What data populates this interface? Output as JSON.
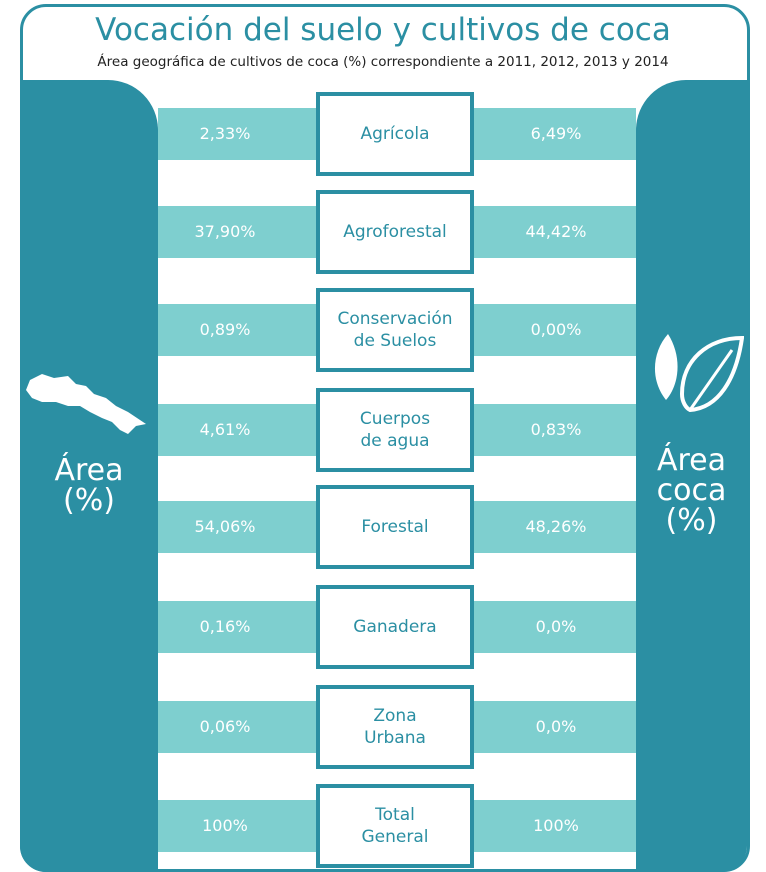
{
  "header": {
    "title": "Vocación del suelo y cultivos de coca",
    "subtitle": "Área geográfica de cultivos de coca (%) correspondiente a 2011, 2012, 2013 y 2014"
  },
  "left_panel": {
    "label": [
      "Área",
      "(%)"
    ]
  },
  "right_panel": {
    "label": [
      "Área",
      "coca",
      "(%)"
    ]
  },
  "rows": [
    {
      "label": [
        "Agrícola"
      ],
      "area": "2,33%",
      "coca": "6,49%"
    },
    {
      "label": [
        "Agroforestal"
      ],
      "area": "37,90%",
      "coca": "44,42%"
    },
    {
      "label": [
        "Conservación",
        "de Suelos"
      ],
      "area": "0,89%",
      "coca": "0,00%"
    },
    {
      "label": [
        "Cuerpos",
        "de agua"
      ],
      "area": "4,61%",
      "coca": "0,83%"
    },
    {
      "label": [
        "Forestal"
      ],
      "area": "54,06%",
      "coca": "48,26%"
    },
    {
      "label": [
        "Ganadera"
      ],
      "area": "0,16%",
      "coca": "0,0%"
    },
    {
      "label": [
        "Zona",
        "Urbana"
      ],
      "area": "0,06%",
      "coca": "0,0%"
    },
    {
      "label": [
        "Total",
        "General"
      ],
      "area": "100%",
      "coca": "100%"
    }
  ]
}
